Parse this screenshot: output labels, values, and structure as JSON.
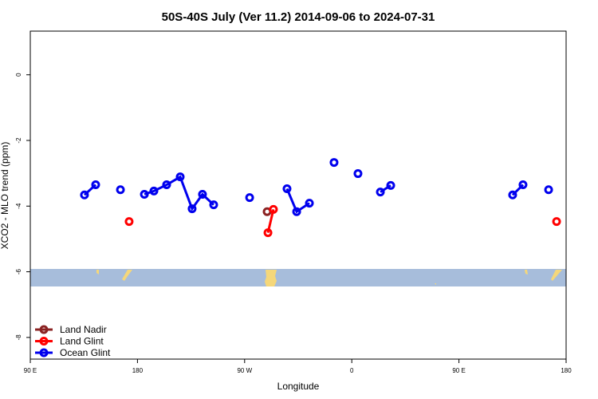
{
  "chart_data": {
    "type": "line",
    "title": "50S-40S July (Ver 11.2)   2014-09-06 to 2024-07-31",
    "x_label": "Longitude",
    "y_label": "XCO2 - MLO trend (ppm)",
    "xlim": [
      90,
      540
    ],
    "xticks": [
      {
        "value": 90,
        "label": "90 E"
      },
      180,
      {
        "value": 270,
        "label": "90 W"
      },
      {
        "value": 360,
        "label": "0"
      },
      {
        "value": 450,
        "label": "90 E"
      },
      {
        "value": 540,
        "label": "180"
      }
    ],
    "ylim": [
      -8.66,
      1.33
    ],
    "yticks": [
      0,
      -2,
      -4,
      -6,
      -8
    ],
    "legend": "bottom-left",
    "series": [
      {
        "name": "Land Nadir",
        "color": "#8b2323",
        "x": [
          288.9
        ],
        "values": [
          -4.17
        ]
      },
      {
        "name": "Land Glint",
        "color": "#ff0000",
        "x": [
          173.0,
          null,
          289.6,
          294.2,
          null,
          532.0
        ],
        "values": [
          -4.47,
          null,
          -4.81,
          -4.1,
          null,
          -4.47
        ]
      },
      {
        "name": "Ocean Glint",
        "color": "#0000ee",
        "x": [
          135.5,
          144.9,
          null,
          165.7,
          null,
          185.8,
          193.8,
          204.5,
          215.9,
          225.9,
          234.6,
          244.0,
          null,
          274.2,
          null,
          305.6,
          313.7,
          324.4,
          null,
          345.1,
          null,
          365.2,
          null,
          384.0,
          392.7,
          null,
          495.1,
          503.8,
          null,
          525.3
        ],
        "values": [
          -3.66,
          -3.35,
          null,
          -3.5,
          null,
          -3.64,
          -3.54,
          -3.35,
          -3.11,
          -4.08,
          -3.64,
          -3.96,
          null,
          -3.74,
          null,
          -3.47,
          -4.17,
          -3.91,
          null,
          -2.67,
          null,
          -3.01,
          null,
          -3.57,
          -3.37,
          null,
          -3.66,
          -3.35,
          null,
          -3.5
        ]
      }
    ]
  }
}
